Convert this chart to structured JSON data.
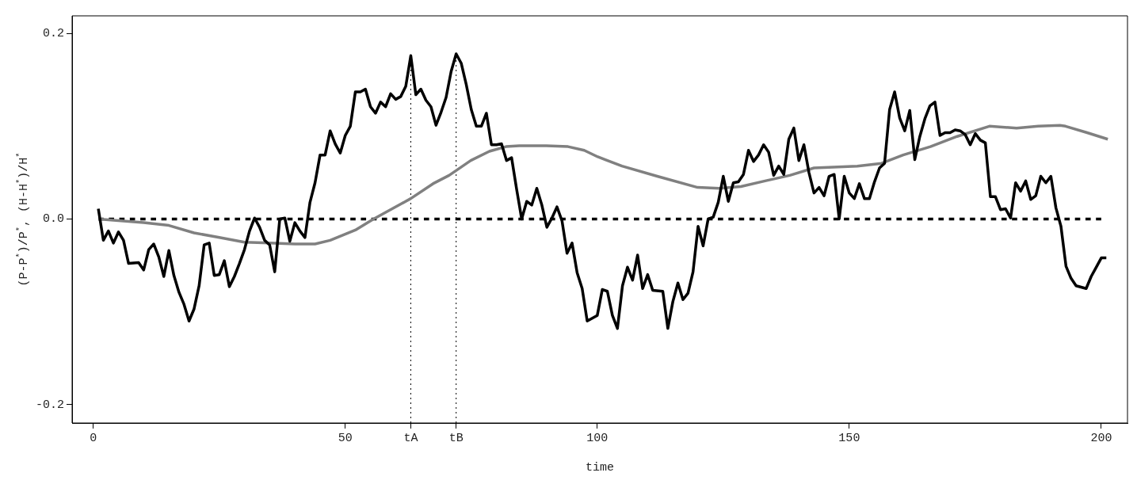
{
  "chart_data": {
    "type": "line",
    "xlabel": "time",
    "ylabel": "(P-P$^{*}$)/P$^{*}$, (H-H$^{*}$)/H$^{*}$",
    "xlim": [
      -4.2,
      205.2
    ],
    "ylim": [
      -0.22,
      0.219
    ],
    "xticks": [
      0,
      50,
      {
        "value": 63,
        "label": "tA"
      },
      {
        "value": 72,
        "label": "tB"
      },
      100,
      150,
      200
    ],
    "yticks": [
      {
        "value": -0.2,
        "label": "-0.2"
      },
      {
        "value": 0,
        "label": "0.0"
      },
      {
        "value": 0.2,
        "label": "0.2"
      }
    ],
    "grid": false,
    "legend": false,
    "marker": "none",
    "ref_lines": [
      {
        "axis": "x",
        "value": 63,
        "color": "#000000",
        "line_style": "dotted"
      },
      {
        "axis": "x",
        "value": 72,
        "color": "#000000",
        "line_style": "dotted"
      }
    ],
    "series": [
      {
        "color": "#000000",
        "line_style": "solid",
        "x": [
          1,
          2,
          3,
          4,
          5,
          6,
          7,
          9,
          10,
          11,
          12,
          13,
          14,
          15,
          16,
          17,
          18,
          19,
          20,
          21,
          22,
          23,
          24,
          25,
          26,
          27,
          28,
          29,
          30,
          31,
          32,
          33,
          34,
          35,
          36,
          37,
          38,
          39,
          40,
          41,
          42,
          43,
          44,
          45,
          46,
          47,
          48,
          49,
          50,
          51,
          52,
          53,
          54,
          55,
          56,
          57,
          58,
          59,
          60,
          61,
          62,
          63,
          64,
          65,
          66,
          67,
          68,
          69,
          70,
          71,
          72,
          73,
          74,
          75,
          76,
          77,
          78,
          79,
          80,
          81,
          82,
          83,
          84,
          85,
          86,
          87,
          88,
          89,
          90,
          91,
          92,
          93,
          94,
          95,
          96,
          97,
          98,
          100,
          101,
          102,
          103,
          104,
          105,
          106,
          107,
          108,
          109,
          110,
          111,
          113,
          114,
          115,
          116,
          117,
          118,
          119,
          120,
          121,
          122,
          123,
          124,
          125,
          126,
          127,
          128,
          129,
          130,
          131,
          132,
          133,
          134,
          135,
          136,
          137,
          138,
          139,
          140,
          141,
          142,
          143,
          144,
          145,
          146,
          147,
          148,
          149,
          150,
          151,
          152,
          153,
          154,
          155,
          156,
          157,
          158,
          159,
          160,
          161,
          162,
          163,
          164,
          165,
          166,
          167,
          168,
          169,
          170,
          171,
          172,
          173,
          174,
          175,
          176,
          177,
          178,
          179,
          180,
          181,
          182,
          183,
          184,
          185,
          186,
          187,
          188,
          189,
          190,
          191,
          192,
          193,
          194,
          195,
          197,
          198,
          199,
          200,
          201
        ],
        "values": [
          0.011,
          -0.023,
          -0.013,
          -0.026,
          -0.014,
          -0.023,
          -0.048,
          -0.047,
          -0.055,
          -0.033,
          -0.027,
          -0.041,
          -0.062,
          -0.034,
          -0.061,
          -0.079,
          -0.092,
          -0.11,
          -0.097,
          -0.072,
          -0.028,
          -0.026,
          -0.061,
          -0.06,
          -0.045,
          -0.073,
          -0.062,
          -0.048,
          -0.033,
          -0.013,
          0.001,
          -0.009,
          -0.023,
          -0.028,
          -0.057,
          0.0,
          0.001,
          -0.024,
          -0.004,
          -0.013,
          -0.02,
          0.018,
          0.039,
          0.069,
          0.069,
          0.095,
          0.081,
          0.071,
          0.09,
          0.1,
          0.137,
          0.137,
          0.14,
          0.121,
          0.114,
          0.126,
          0.121,
          0.135,
          0.129,
          0.132,
          0.143,
          0.176,
          0.134,
          0.14,
          0.128,
          0.121,
          0.101,
          0.115,
          0.131,
          0.159,
          0.178,
          0.168,
          0.145,
          0.118,
          0.1,
          0.1,
          0.114,
          0.08,
          0.08,
          0.081,
          0.063,
          0.066,
          0.032,
          0.0,
          0.019,
          0.015,
          0.033,
          0.015,
          -0.009,
          0.001,
          0.013,
          -0.002,
          -0.037,
          -0.026,
          -0.058,
          -0.075,
          -0.11,
          -0.104,
          -0.076,
          -0.078,
          -0.104,
          -0.118,
          -0.072,
          -0.052,
          -0.066,
          -0.039,
          -0.075,
          -0.06,
          -0.077,
          -0.078,
          -0.118,
          -0.089,
          -0.069,
          -0.087,
          -0.08,
          -0.057,
          -0.008,
          -0.029,
          0.0,
          0.002,
          0.018,
          0.046,
          0.019,
          0.039,
          0.04,
          0.048,
          0.074,
          0.062,
          0.069,
          0.08,
          0.072,
          0.047,
          0.057,
          0.048,
          0.086,
          0.098,
          0.063,
          0.08,
          0.05,
          0.028,
          0.034,
          0.025,
          0.046,
          0.048,
          0.0,
          0.046,
          0.028,
          0.022,
          0.038,
          0.022,
          0.022,
          0.04,
          0.055,
          0.06,
          0.118,
          0.137,
          0.109,
          0.095,
          0.117,
          0.064,
          0.089,
          0.108,
          0.122,
          0.126,
          0.09,
          0.093,
          0.093,
          0.096,
          0.095,
          0.091,
          0.08,
          0.092,
          0.085,
          0.082,
          0.024,
          0.024,
          0.01,
          0.011,
          0.001,
          0.039,
          0.03,
          0.041,
          0.021,
          0.025,
          0.046,
          0.039,
          0.046,
          0.012,
          -0.008,
          -0.051,
          -0.064,
          -0.072,
          -0.075,
          -0.062,
          -0.052,
          -0.042,
          -0.042
        ]
      },
      {
        "color": "#808080",
        "line_style": "solid",
        "x": [
          1,
          10,
          15,
          20,
          25,
          30,
          35,
          40,
          44,
          47,
          52,
          55.6,
          63,
          67.4,
          70.6,
          74.9,
          78.6,
          81.9,
          84.5,
          89.9,
          94.2,
          97.4,
          100.1,
          104.9,
          111.9,
          119.9,
          124.2,
          128.5,
          133.3,
          138.2,
          143,
          147.8,
          151.6,
          156.4,
          160.7,
          166.1,
          171.4,
          177.8,
          183.2,
          187.5,
          191.8,
          192.9,
          197.2,
          201.3
        ],
        "values": [
          0.0,
          -0.004,
          -0.007,
          -0.015,
          -0.02,
          -0.025,
          -0.026,
          -0.027,
          -0.027,
          -0.023,
          -0.012,
          0.0,
          0.022,
          0.038,
          0.047,
          0.063,
          0.073,
          0.078,
          0.079,
          0.079,
          0.078,
          0.074,
          0.067,
          0.057,
          0.046,
          0.034,
          0.033,
          0.035,
          0.041,
          0.047,
          0.055,
          0.056,
          0.057,
          0.06,
          0.069,
          0.078,
          0.089,
          0.1,
          0.098,
          0.1,
          0.101,
          0.1,
          0.093,
          0.086
        ]
      },
      {
        "color": "#000000",
        "line_style": "dashed",
        "x": [
          1,
          200
        ],
        "values": [
          0,
          0
        ]
      }
    ]
  }
}
